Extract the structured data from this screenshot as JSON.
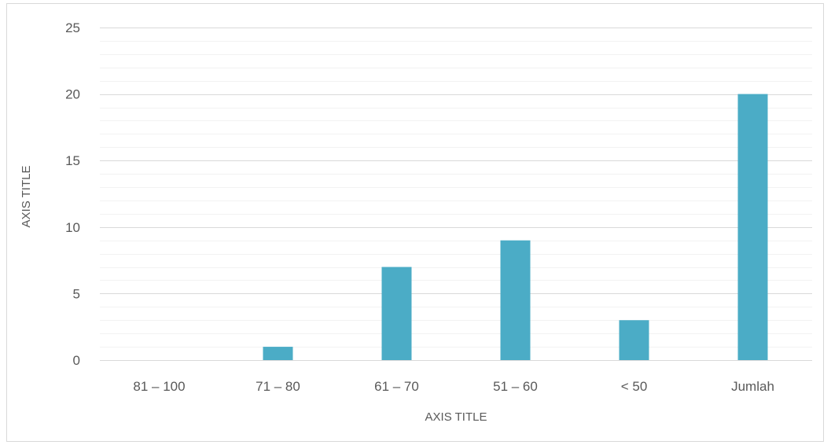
{
  "chart_data": {
    "type": "bar",
    "title": "",
    "xlabel": "AXIS TITLE",
    "ylabel": "AXIS TITLE",
    "categories": [
      "81 – 100",
      "71 – 80",
      "61 – 70",
      "51 – 60",
      "< 50",
      "Jumlah"
    ],
    "values": [
      0,
      1,
      7,
      9,
      3,
      20
    ],
    "ylim": [
      0,
      25
    ],
    "y_major_ticks": [
      0,
      5,
      10,
      15,
      20,
      25
    ],
    "y_minor_step": 1,
    "grid": true,
    "legend": "none",
    "bar_color": "#4bacc6",
    "major_grid_color": "#d9d9d9",
    "minor_grid_color": "#f2f2f2"
  }
}
